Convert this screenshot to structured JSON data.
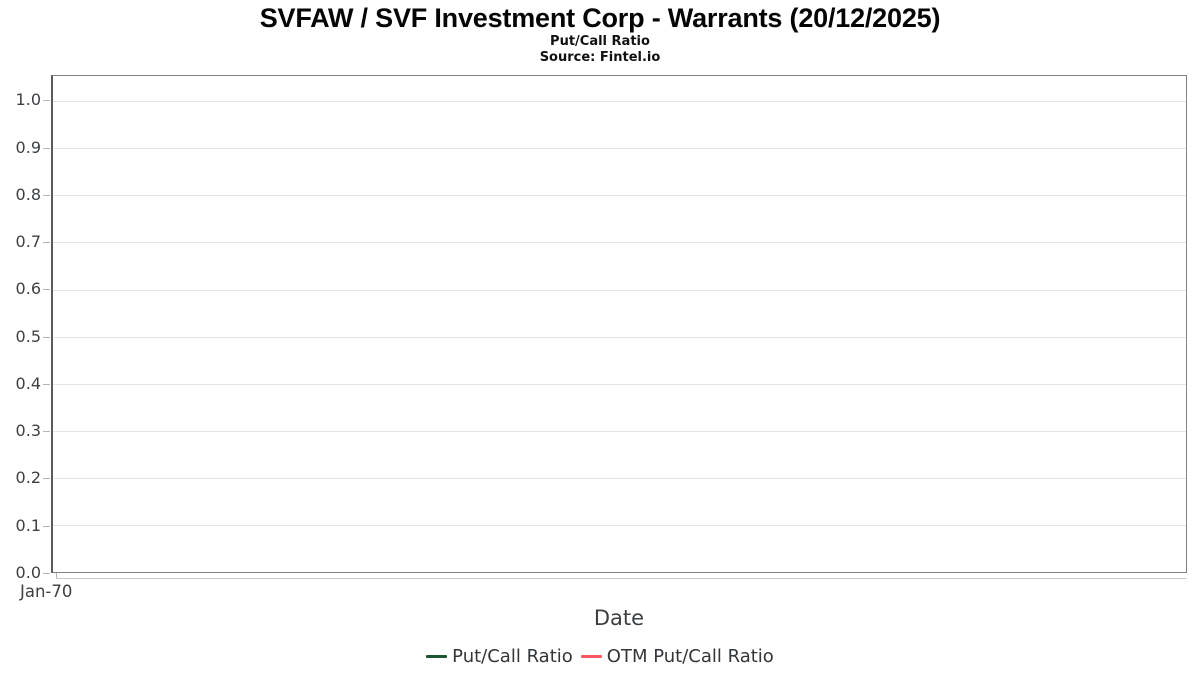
{
  "header": {
    "title": "SVFAW / SVF Investment Corp - Warrants (20/12/2025)",
    "subtitle": "Put/Call Ratio",
    "source": "Source: Fintel.io"
  },
  "axes": {
    "xlabel": "Date",
    "x_ticks": [
      "Jan-70"
    ],
    "y_ticks": [
      "0.0",
      "0.1",
      "0.2",
      "0.3",
      "0.4",
      "0.5",
      "0.6",
      "0.7",
      "0.8",
      "0.9",
      "1.0"
    ]
  },
  "legend": {
    "items": [
      {
        "label": "Put/Call Ratio",
        "color": "#1e5631"
      },
      {
        "label": "OTM Put/Call Ratio",
        "color": "#fa5a5f"
      }
    ]
  },
  "colors": {
    "put_call_series": "#1e5631",
    "otm_put_call_series": "#fa5a5f",
    "plot_border": "#7f8184",
    "gridline": "#e4e4e6"
  },
  "chart_data": {
    "type": "line",
    "title": "SVFAW / SVF Investment Corp - Warrants (20/12/2025)",
    "subtitle": "Put/Call Ratio",
    "source": "Source: Fintel.io",
    "xlabel": "Date",
    "ylabel": "",
    "x_tick_labels": [
      "Jan-70"
    ],
    "y_tick_values": [
      0.0,
      0.1,
      0.2,
      0.3,
      0.4,
      0.5,
      0.6,
      0.7,
      0.8,
      0.9,
      1.0
    ],
    "ylim": [
      0,
      1.05
    ],
    "grid": true,
    "legend_position": "bottom",
    "plot_is_empty": true,
    "series": [
      {
        "name": "Put/Call Ratio",
        "color": "#1e5631",
        "x": [],
        "values": []
      },
      {
        "name": "OTM Put/Call Ratio",
        "color": "#fa5a5f",
        "x": [],
        "values": []
      }
    ]
  }
}
